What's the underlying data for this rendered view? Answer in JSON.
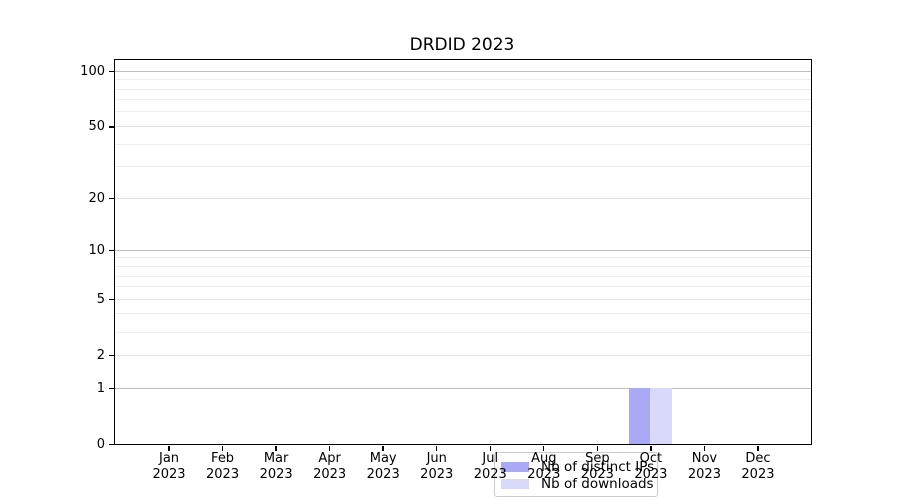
{
  "chart_data": {
    "type": "bar",
    "title": "DRDID 2023",
    "categories": [
      "Jan 2023",
      "Feb 2023",
      "Mar 2023",
      "Apr 2023",
      "May 2023",
      "Jun 2023",
      "Jul 2023",
      "Aug 2023",
      "Sep 2023",
      "Oct 2023",
      "Nov 2023",
      "Dec 2023"
    ],
    "x": {
      "months": [
        "Jan",
        "Feb",
        "Mar",
        "Apr",
        "May",
        "Jun",
        "Jul",
        "Aug",
        "Sep",
        "Oct",
        "Nov",
        "Dec"
      ],
      "year": "2023"
    },
    "series": [
      {
        "name": "Nb of distinct IPs",
        "color": "#a9a9f6",
        "values": [
          0,
          0,
          0,
          0,
          0,
          0,
          0,
          0,
          0,
          1,
          0,
          0
        ]
      },
      {
        "name": "Nb of downloads",
        "color": "#d9d9f9",
        "values": [
          0,
          0,
          0,
          0,
          0,
          0,
          0,
          0,
          0,
          1,
          0,
          0
        ]
      }
    ],
    "y_axis": {
      "scale": "log1p",
      "major_ticks": [
        0,
        1,
        2,
        5,
        10,
        20,
        50,
        100
      ],
      "minor_ticks": [
        3,
        4,
        6,
        7,
        8,
        9,
        30,
        40,
        60,
        70,
        80,
        90
      ],
      "max": 115
    },
    "legend": {
      "position": "bottom-center",
      "entries": [
        "Nb of distinct IPs",
        "Nb of downloads"
      ]
    },
    "grid": true
  },
  "colors": {
    "background": "#ffffff",
    "axis": "#000000",
    "grid_power10": "#bdbdbd",
    "grid_labeled": "#e2e2e2",
    "grid_minor": "#ededed",
    "legend_border": "#cccccc"
  }
}
